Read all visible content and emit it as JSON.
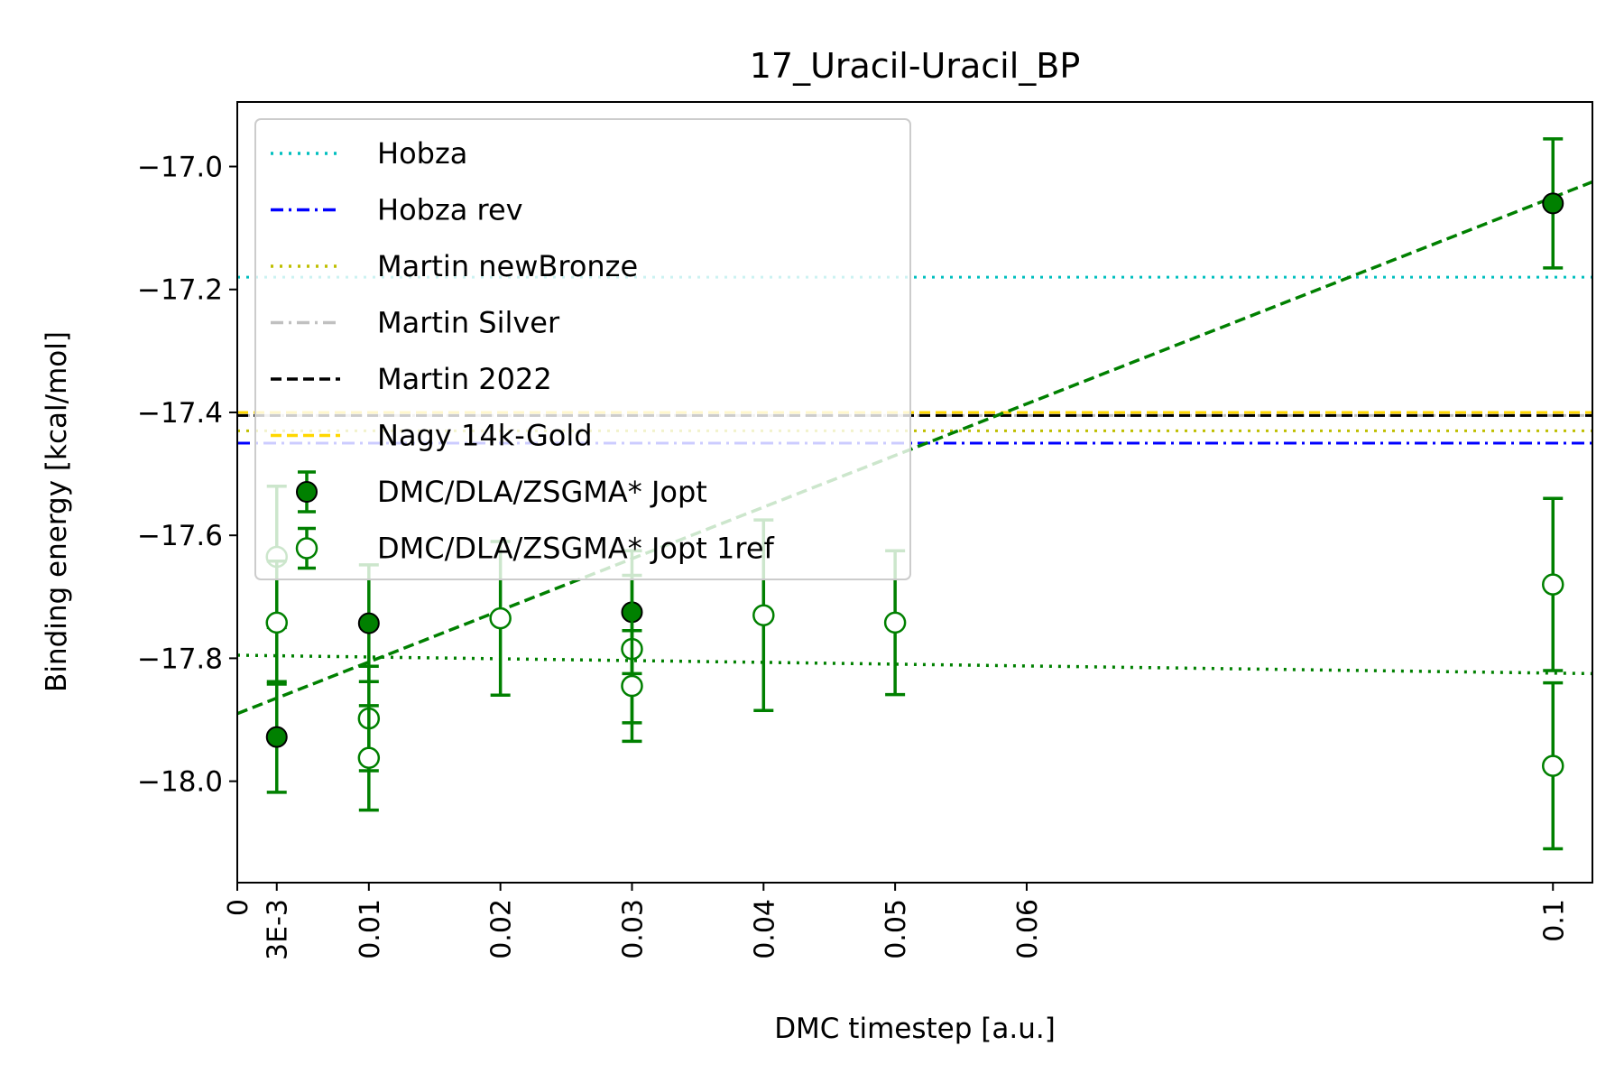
{
  "chart_data": {
    "type": "scatter",
    "title": "17_Uracil-Uracil_BP",
    "xlabel": "DMC timestep [a.u.]",
    "ylabel": "Binding energy [kcal/mol]",
    "xlim": [
      0,
      0.103
    ],
    "ylim": [
      -18.165,
      -16.895
    ],
    "x_ticks": [
      {
        "value": 0,
        "label": "0"
      },
      {
        "value": 0.003,
        "label": "3E-3"
      },
      {
        "value": 0.01,
        "label": "0.01"
      },
      {
        "value": 0.02,
        "label": "0.02"
      },
      {
        "value": 0.03,
        "label": "0.03"
      },
      {
        "value": 0.04,
        "label": "0.04"
      },
      {
        "value": 0.05,
        "label": "0.05"
      },
      {
        "value": 0.06,
        "label": "0.06"
      },
      {
        "value": 0.1,
        "label": "0.1"
      }
    ],
    "y_ticks": [
      {
        "value": -17.0,
        "label": "−17.0"
      },
      {
        "value": -17.2,
        "label": "−17.2"
      },
      {
        "value": -17.4,
        "label": "−17.4"
      },
      {
        "value": -17.6,
        "label": "−17.6"
      },
      {
        "value": -17.8,
        "label": "−17.8"
      },
      {
        "value": -18.0,
        "label": "−18.0"
      }
    ],
    "grid": false,
    "legend_position": "top-left",
    "reference_lines": [
      {
        "name": "Hobza",
        "y": -17.18,
        "color": "#00bfbf",
        "style": "dotted"
      },
      {
        "name": "Hobza rev",
        "y": -17.45,
        "color": "#0000ff",
        "style": "dashdot"
      },
      {
        "name": "Martin newBronze",
        "y": -17.43,
        "color": "#bfbf00",
        "style": "dotted"
      },
      {
        "name": "Martin Silver",
        "y": -17.405,
        "color": "#c0c0c0",
        "style": "dashdot"
      },
      {
        "name": "Martin 2022",
        "y": -17.405,
        "color": "#000000",
        "style": "dashed"
      },
      {
        "name": "Nagy 14k-Gold",
        "y": -17.4,
        "color": "#ffd700",
        "style": "dashed"
      }
    ],
    "series": [
      {
        "name": "DMC/DLA/ZSGMA* Jopt",
        "color": "#008000",
        "filled": true,
        "points": [
          {
            "x": 0.003,
            "y": -17.928,
            "err": 0.09
          },
          {
            "x": 0.01,
            "y": -17.743,
            "err": 0.095
          },
          {
            "x": 0.03,
            "y": -17.725,
            "err": 0.1
          },
          {
            "x": 0.1,
            "y": -17.06,
            "err": 0.105
          }
        ],
        "fit": {
          "style": "dashed",
          "x0": 0,
          "y0": -17.89,
          "x1": 0.103,
          "y1": -17.025
        }
      },
      {
        "name": "DMC/DLA/ZSGMA* Jopt 1ref",
        "color": "#008000",
        "filled": false,
        "points": [
          {
            "x": 0.003,
            "y": -17.635,
            "err": 0.115
          },
          {
            "x": 0.003,
            "y": -17.742,
            "err": 0.1
          },
          {
            "x": 0.01,
            "y": -17.898,
            "err": 0.085
          },
          {
            "x": 0.01,
            "y": -17.962,
            "err": 0.085
          },
          {
            "x": 0.02,
            "y": -17.735,
            "err": 0.125
          },
          {
            "x": 0.03,
            "y": -17.785,
            "err": 0.12
          },
          {
            "x": 0.03,
            "y": -17.845,
            "err": 0.09
          },
          {
            "x": 0.04,
            "y": -17.73,
            "err": 0.155
          },
          {
            "x": 0.05,
            "y": -17.742,
            "err": 0.117
          },
          {
            "x": 0.1,
            "y": -17.68,
            "err": 0.14
          },
          {
            "x": 0.1,
            "y": -17.975,
            "err": 0.135
          }
        ],
        "fit": {
          "style": "dotted",
          "x0": 0,
          "y0": -17.795,
          "x1": 0.103,
          "y1": -17.825
        }
      }
    ]
  }
}
